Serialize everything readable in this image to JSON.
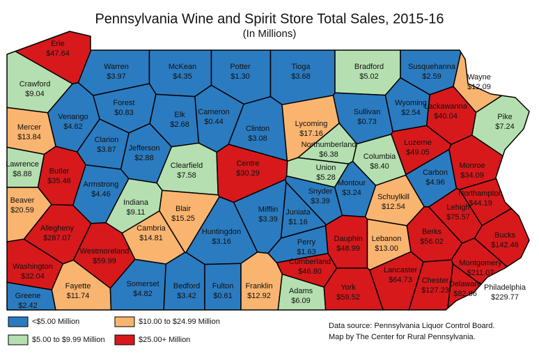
{
  "title": "Pennsylvania Wine and Spirit Store Total Sales, 2015-16",
  "subtitle": "(In Millions)",
  "counties": [
    {
      "name": "Erie",
      "value": "$47.64",
      "color": "#d7191c"
    },
    {
      "name": "Warren",
      "value": "$3.97",
      "color": "#2b7bc0"
    },
    {
      "name": "McKean",
      "value": "$4.35",
      "color": "#2b7bc0"
    },
    {
      "name": "Potter",
      "value": "$1.30",
      "color": "#2b7bc0"
    },
    {
      "name": "Tioga",
      "value": "$3.68",
      "color": "#2b7bc0"
    },
    {
      "name": "Bradford",
      "value": "$5.02",
      "color": "#b5dfb0"
    },
    {
      "name": "Susquehanna",
      "value": "$2.59",
      "color": "#2b7bc0"
    },
    {
      "name": "Wayne",
      "value": "$12.09",
      "color": "#f9b470"
    },
    {
      "name": "Crawford",
      "value": "$9.04",
      "color": "#b5dfb0"
    },
    {
      "name": "Venango",
      "value": "$4.62",
      "color": "#2b7bc0"
    },
    {
      "name": "Forest",
      "value": "$0.83",
      "color": "#2b7bc0"
    },
    {
      "name": "Elk",
      "value": "$2.68",
      "color": "#2b7bc0"
    },
    {
      "name": "Cameron",
      "value": "$0.44",
      "color": "#2b7bc0"
    },
    {
      "name": "Clinton",
      "value": "$3.08",
      "color": "#2b7bc0"
    },
    {
      "name": "Lycoming",
      "value": "$17.16",
      "color": "#f9b470"
    },
    {
      "name": "Sullivan",
      "value": "$0.73",
      "color": "#2b7bc0"
    },
    {
      "name": "Wyoming",
      "value": "$2.54",
      "color": "#2b7bc0"
    },
    {
      "name": "Lackawanna",
      "value": "$40.04",
      "color": "#d7191c"
    },
    {
      "name": "Pike",
      "value": "$7.24",
      "color": "#b5dfb0"
    },
    {
      "name": "Mercer",
      "value": "$13.84",
      "color": "#f9b470"
    },
    {
      "name": "Clarion",
      "value": "$3.87",
      "color": "#2b7bc0"
    },
    {
      "name": "Jefferson",
      "value": "$2.88",
      "color": "#2b7bc0"
    },
    {
      "name": "Clearfield",
      "value": "$7.58",
      "color": "#b5dfb0"
    },
    {
      "name": "Centre",
      "value": "$30.29",
      "color": "#d7191c"
    },
    {
      "name": "Northumberland",
      "value": "$6.38",
      "color": "#b5dfb0"
    },
    {
      "name": "Union",
      "value": "$5.28",
      "color": "#b5dfb0"
    },
    {
      "name": "Montour",
      "value": "$3.24",
      "color": "#2b7bc0"
    },
    {
      "name": "Columbia",
      "value": "$8.40",
      "color": "#b5dfb0"
    },
    {
      "name": "Luzerne",
      "value": "$49.05",
      "color": "#d7191c"
    },
    {
      "name": "Monroe",
      "value": "$34.09",
      "color": "#d7191c"
    },
    {
      "name": "Carbon",
      "value": "$4.96",
      "color": "#2b7bc0"
    },
    {
      "name": "Lawrence",
      "value": "$8.88",
      "color": "#b5dfb0"
    },
    {
      "name": "Butler",
      "value": "$35.46",
      "color": "#d7191c"
    },
    {
      "name": "Armstrong",
      "value": "$4.46",
      "color": "#2b7bc0"
    },
    {
      "name": "Indiana",
      "value": "$9.11",
      "color": "#b5dfb0"
    },
    {
      "name": "Snyder",
      "value": "$3.39",
      "color": "#2b7bc0"
    },
    {
      "name": "Schuylkill",
      "value": "$12.54",
      "color": "#f9b470"
    },
    {
      "name": "Northampton",
      "value": "$44.19",
      "color": "#d7191c"
    },
    {
      "name": "Lehigh",
      "value": "$75.57",
      "color": "#d7191c"
    },
    {
      "name": "Beaver",
      "value": "$20.59",
      "color": "#f9b470"
    },
    {
      "name": "Allegheny",
      "value": "$287.07",
      "color": "#d7191c"
    },
    {
      "name": "Blair",
      "value": "$15.25",
      "color": "#f9b470"
    },
    {
      "name": "Cambria",
      "value": "$14.81",
      "color": "#f9b470"
    },
    {
      "name": "Mifflin",
      "value": "$3.39",
      "color": "#2b7bc0"
    },
    {
      "name": "Juniata",
      "value": "$1.16",
      "color": "#2b7bc0"
    },
    {
      "name": "Huntingdon",
      "value": "$3.16",
      "color": "#2b7bc0"
    },
    {
      "name": "Perry",
      "value": "$1.63",
      "color": "#2b7bc0"
    },
    {
      "name": "Dauphin",
      "value": "$48.99",
      "color": "#d7191c"
    },
    {
      "name": "Lebanon",
      "value": "$13.00",
      "color": "#f9b470"
    },
    {
      "name": "Berks",
      "value": "$56.02",
      "color": "#d7191c"
    },
    {
      "name": "Bucks",
      "value": "$142.46",
      "color": "#d7191c"
    },
    {
      "name": "Westmoreland",
      "value": "$59.99",
      "color": "#d7191c"
    },
    {
      "name": "Washington",
      "value": "$32.04",
      "color": "#d7191c"
    },
    {
      "name": "Cumberland",
      "value": "$46.80",
      "color": "#d7191c"
    },
    {
      "name": "Montgomery",
      "value": "$211.07",
      "color": "#d7191c"
    },
    {
      "name": "Lancaster",
      "value": "$64.73",
      "color": "#d7191c"
    },
    {
      "name": "Chester",
      "value": "$127.23",
      "color": "#d7191c"
    },
    {
      "name": "Delaware",
      "value": "$82.86",
      "color": "#d7191c"
    },
    {
      "name": "Philadelphia",
      "value": "$229.77",
      "color": "#d7191c"
    },
    {
      "name": "Fayette",
      "value": "$11.74",
      "color": "#f9b470"
    },
    {
      "name": "Somerset",
      "value": "$4.82",
      "color": "#2b7bc0"
    },
    {
      "name": "Bedford",
      "value": "$3.42",
      "color": "#2b7bc0"
    },
    {
      "name": "Fulton",
      "value": "$0.61",
      "color": "#2b7bc0"
    },
    {
      "name": "Franklin",
      "value": "$12.92",
      "color": "#f9b470"
    },
    {
      "name": "Adams",
      "value": "$6.09",
      "color": "#b5dfb0"
    },
    {
      "name": "York",
      "value": "$59.52",
      "color": "#d7191c"
    },
    {
      "name": "Greene",
      "value": "$2.42",
      "color": "#2b7bc0"
    }
  ],
  "legend": [
    {
      "label": "<$5.00 Million",
      "color": "#2b7bc0"
    },
    {
      "label": "$5.00 to $9.99 Million",
      "color": "#b5dfb0"
    },
    {
      "label": "$10.00 to $24.99 Million",
      "color": "#f9b470"
    },
    {
      "label": "$25.00+ Million",
      "color": "#d7191c"
    }
  ],
  "source": [
    "Data source: Pennsylvania Liquor Control Board.",
    "Map by The Center for Rural Pennsylvania."
  ]
}
